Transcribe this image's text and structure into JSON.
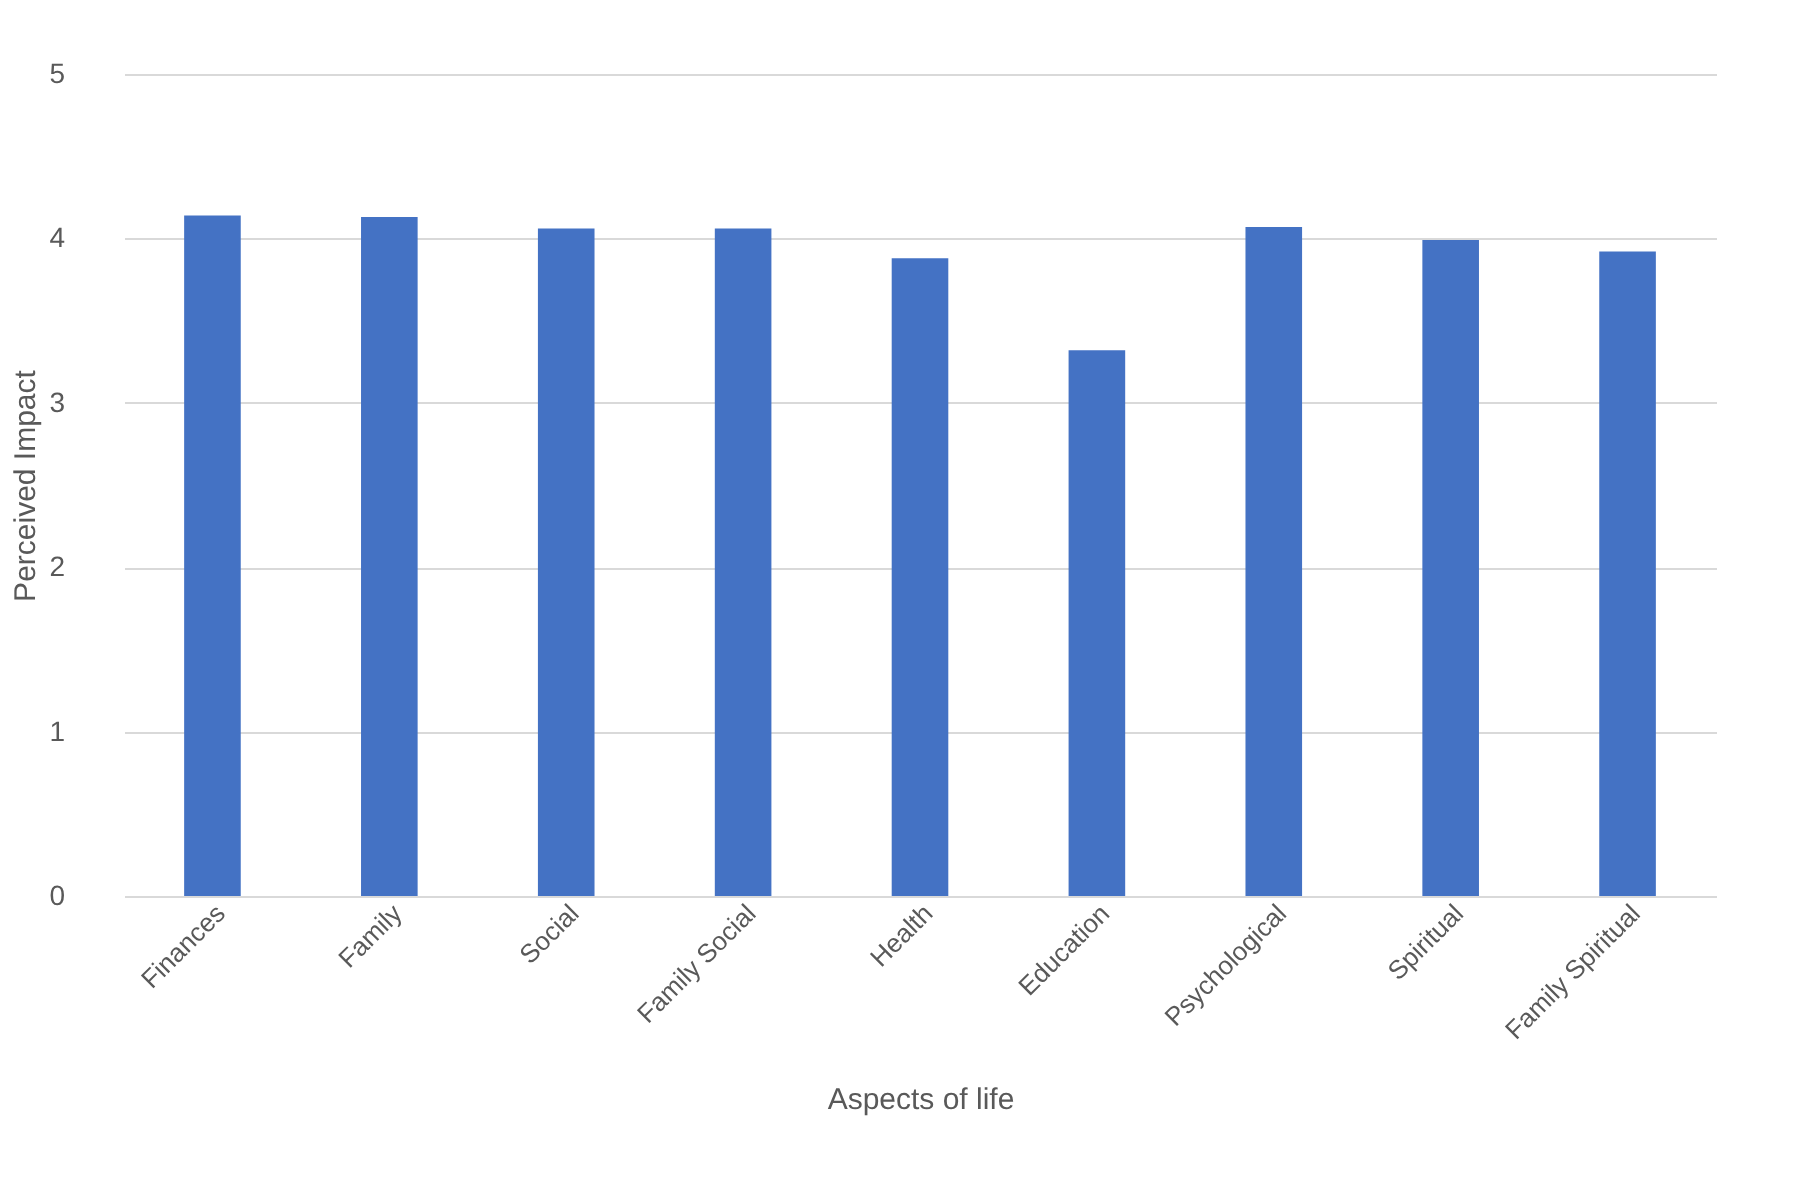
{
  "chart_data": {
    "type": "bar",
    "xlabel": "Aspects of life",
    "ylabel": "Perceived Impact",
    "categories": [
      "Finances",
      "Family",
      "Social",
      "Family Social",
      "Health",
      "Education",
      "Psychological",
      "Spiritual",
      "Family Spiritual"
    ],
    "series": [
      {
        "color": "#4472c4",
        "values": [
          4.14,
          4.13,
          4.06,
          4.06,
          3.88,
          3.32,
          4.07,
          3.99,
          3.92
        ]
      }
    ],
    "ylim": [
      0,
      5
    ],
    "yticks": [
      0,
      1,
      2,
      3,
      4,
      5
    ],
    "grid": "y"
  }
}
